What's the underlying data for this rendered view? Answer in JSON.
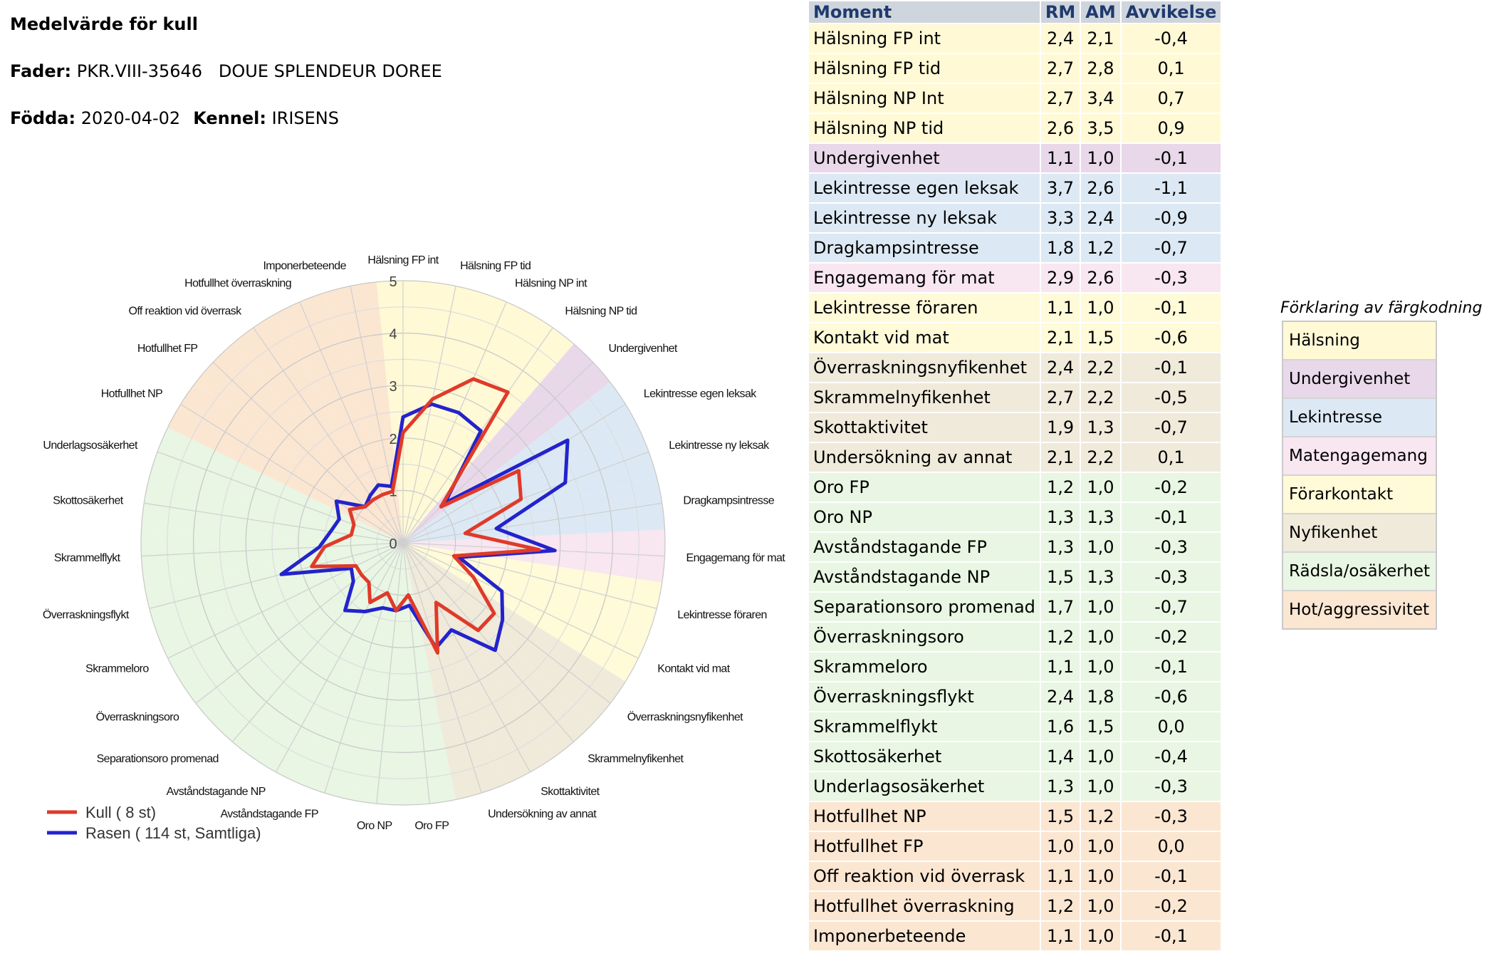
{
  "header": {
    "title": "Medelvärde för kull",
    "fader_label": "Fader:",
    "fader_value": "PKR.VIII-35646   DOUE SPLENDEUR DOREE",
    "fodda_label": "Födda:",
    "fodda_value": "2020-04-02",
    "kennel_label": "Kennel:",
    "kennel_value": "IRISENS"
  },
  "colors": {
    "halsning": "#fff9d6",
    "undergivenhet": "#e8d8ea",
    "lekintresse": "#dce9f4",
    "matengagemang": "#f8e6f0",
    "forarkontakt": "#fffad8",
    "nyfikenhet": "#efeada",
    "radsla": "#e8f6e3",
    "hot": "#fbe6d2",
    "kull_line": "#e03a2a",
    "rasen_line": "#2323cc"
  },
  "table": {
    "headers": [
      "Moment",
      "RM",
      "AM",
      "Avvikelse"
    ],
    "rows": [
      {
        "moment": "Hälsning FP int",
        "rm": "2,4",
        "am": "2,1",
        "avv": "-0,4",
        "cat": "halsning"
      },
      {
        "moment": "Hälsning FP tid",
        "rm": "2,7",
        "am": "2,8",
        "avv": "0,1",
        "cat": "halsning"
      },
      {
        "moment": "Hälsning NP Int",
        "rm": "2,7",
        "am": "3,4",
        "avv": "0,7",
        "cat": "halsning"
      },
      {
        "moment": "Hälsning NP tid",
        "rm": "2,6",
        "am": "3,5",
        "avv": "0,9",
        "cat": "halsning"
      },
      {
        "moment": "Undergivenhet",
        "rm": "1,1",
        "am": "1,0",
        "avv": "-0,1",
        "cat": "undergivenhet"
      },
      {
        "moment": "Lekintresse egen leksak",
        "rm": "3,7",
        "am": "2,6",
        "avv": "-1,1",
        "cat": "lekintresse"
      },
      {
        "moment": "Lekintresse ny leksak",
        "rm": "3,3",
        "am": "2,4",
        "avv": "-0,9",
        "cat": "lekintresse"
      },
      {
        "moment": "Dragkampsintresse",
        "rm": "1,8",
        "am": "1,2",
        "avv": "-0,7",
        "cat": "lekintresse"
      },
      {
        "moment": "Engagemang för mat",
        "rm": "2,9",
        "am": "2,6",
        "avv": "-0,3",
        "cat": "matengagemang"
      },
      {
        "moment": "Lekintresse föraren",
        "rm": "1,1",
        "am": "1,0",
        "avv": "-0,1",
        "cat": "forarkontakt"
      },
      {
        "moment": "Kontakt vid mat",
        "rm": "2,1",
        "am": "1,5",
        "avv": "-0,6",
        "cat": "forarkontakt"
      },
      {
        "moment": "Överraskningsnyfikenhet",
        "rm": "2,4",
        "am": "2,2",
        "avv": "-0,1",
        "cat": "nyfikenhet"
      },
      {
        "moment": "Skrammelnyfikenhet",
        "rm": "2,7",
        "am": "2,2",
        "avv": "-0,5",
        "cat": "nyfikenhet"
      },
      {
        "moment": "Skottaktivitet",
        "rm": "1,9",
        "am": "1,3",
        "avv": "-0,7",
        "cat": "nyfikenhet"
      },
      {
        "moment": "Undersökning av annat",
        "rm": "2,1",
        "am": "2,2",
        "avv": "0,1",
        "cat": "nyfikenhet"
      },
      {
        "moment": "Oro FP",
        "rm": "1,2",
        "am": "1,0",
        "avv": "-0,2",
        "cat": "radsla"
      },
      {
        "moment": "Oro NP",
        "rm": "1,3",
        "am": "1,3",
        "avv": "-0,1",
        "cat": "radsla"
      },
      {
        "moment": "Avståndstagande FP",
        "rm": "1,3",
        "am": "1,0",
        "avv": "-0,3",
        "cat": "radsla"
      },
      {
        "moment": "Avståndstagande NP",
        "rm": "1,5",
        "am": "1,3",
        "avv": "-0,3",
        "cat": "radsla"
      },
      {
        "moment": "Separationsoro promenad",
        "rm": "1,7",
        "am": "1,0",
        "avv": "-0,7",
        "cat": "radsla"
      },
      {
        "moment": "Överraskningsoro",
        "rm": "1,2",
        "am": "1,0",
        "avv": "-0,2",
        "cat": "radsla"
      },
      {
        "moment": "Skrammeloro",
        "rm": "1,1",
        "am": "1,0",
        "avv": "-0,1",
        "cat": "radsla"
      },
      {
        "moment": "Överraskningsflykt",
        "rm": "2,4",
        "am": "1,8",
        "avv": "-0,6",
        "cat": "radsla"
      },
      {
        "moment": "Skrammelflykt",
        "rm": "1,6",
        "am": "1,5",
        "avv": "0,0",
        "cat": "radsla"
      },
      {
        "moment": "Skottosäkerhet",
        "rm": "1,4",
        "am": "1,0",
        "avv": "-0,4",
        "cat": "radsla"
      },
      {
        "moment": "Underlagsosäkerhet",
        "rm": "1,3",
        "am": "1,0",
        "avv": "-0,3",
        "cat": "radsla"
      },
      {
        "moment": "Hotfullhet NP",
        "rm": "1,5",
        "am": "1,2",
        "avv": "-0,3",
        "cat": "hot"
      },
      {
        "moment": "Hotfullhet FP",
        "rm": "1,0",
        "am": "1,0",
        "avv": "0,0",
        "cat": "hot"
      },
      {
        "moment": "Off reaktion vid överrask",
        "rm": "1,1",
        "am": "1,0",
        "avv": "-0,1",
        "cat": "hot"
      },
      {
        "moment": "Hotfullhet överraskning",
        "rm": "1,2",
        "am": "1,0",
        "avv": "-0,2",
        "cat": "hot"
      },
      {
        "moment": "Imponerbeteende",
        "rm": "1,1",
        "am": "1,0",
        "avv": "-0,1",
        "cat": "hot"
      }
    ]
  },
  "legend": {
    "title": "Förklaring av färgkodning",
    "items": [
      {
        "label": "Hälsning",
        "cat": "halsning"
      },
      {
        "label": "Undergivenhet",
        "cat": "undergivenhet"
      },
      {
        "label": "Lekintresse",
        "cat": "lekintresse"
      },
      {
        "label": "Matengagemang",
        "cat": "matengagemang"
      },
      {
        "label": "Förarkontakt",
        "cat": "forarkontakt"
      },
      {
        "label": "Nyfikenhet",
        "cat": "nyfikenhet"
      },
      {
        "label": "Rädsla/osäkerhet",
        "cat": "radsla"
      },
      {
        "label": "Hot/aggressivitet",
        "cat": "hot"
      }
    ]
  },
  "chart_data": {
    "type": "radar",
    "title": "",
    "rlim": [
      0,
      5
    ],
    "rticks": [
      "0",
      "1",
      "2",
      "3",
      "4",
      "5"
    ],
    "categories": [
      "Hälsning FP int",
      "Hälsning FP tid",
      "Hälsning NP int",
      "Hälsning NP tid",
      "Undergivenhet",
      "Lekintresse egen leksak",
      "Lekintresse ny leksak",
      "Dragkampsintresse",
      "Engagemang för mat",
      "Lekintresse föraren",
      "Kontakt vid mat",
      "Överraskningsnyfikenhet",
      "Skrammelnyfikenhet",
      "Skottaktivitet",
      "Undersökning av annat",
      "Oro FP",
      "Oro NP",
      "Avståndstagande FP",
      "Avståndstagande NP",
      "Separationsoro promenad",
      "Överraskningsoro",
      "Skrammeloro",
      "Överraskningsflykt",
      "Skrammelflykt",
      "Skottosäkerhet",
      "Underlagsosäkerhet",
      "Hotfullhet NP",
      "Hotfullhet FP",
      "Off reaktion vid överrask",
      "Hotfullhet överraskning",
      "Imponerbeteende"
    ],
    "category_groups": [
      "halsning",
      "halsning",
      "halsning",
      "halsning",
      "undergivenhet",
      "lekintresse",
      "lekintresse",
      "lekintresse",
      "matengagemang",
      "forarkontakt",
      "forarkontakt",
      "nyfikenhet",
      "nyfikenhet",
      "nyfikenhet",
      "nyfikenhet",
      "radsla",
      "radsla",
      "radsla",
      "radsla",
      "radsla",
      "radsla",
      "radsla",
      "radsla",
      "radsla",
      "radsla",
      "radsla",
      "hot",
      "hot",
      "hot",
      "hot",
      "hot"
    ],
    "series": [
      {
        "name": "Kull ( 8 st)",
        "color": "#e03a2a",
        "values": [
          2.1,
          2.8,
          3.4,
          3.5,
          1.0,
          2.6,
          2.4,
          1.2,
          2.6,
          1.0,
          1.5,
          2.2,
          2.2,
          1.3,
          2.2,
          1.0,
          1.3,
          1.0,
          1.3,
          1.0,
          1.0,
          1.0,
          1.8,
          1.5,
          1.0,
          1.0,
          1.2,
          1.0,
          1.0,
          1.0,
          1.0
        ]
      },
      {
        "name": "Rasen ( 114 st, Samtliga)",
        "color": "#2323cc",
        "values": [
          2.4,
          2.7,
          2.7,
          2.6,
          1.1,
          3.7,
          3.3,
          1.8,
          2.9,
          1.1,
          2.1,
          2.4,
          2.7,
          1.9,
          2.1,
          1.2,
          1.3,
          1.3,
          1.5,
          1.7,
          1.2,
          1.1,
          2.4,
          1.6,
          1.4,
          1.3,
          1.5,
          1.0,
          1.1,
          1.2,
          1.1
        ]
      }
    ],
    "legend_placement": "bottom-left",
    "grid": true
  }
}
